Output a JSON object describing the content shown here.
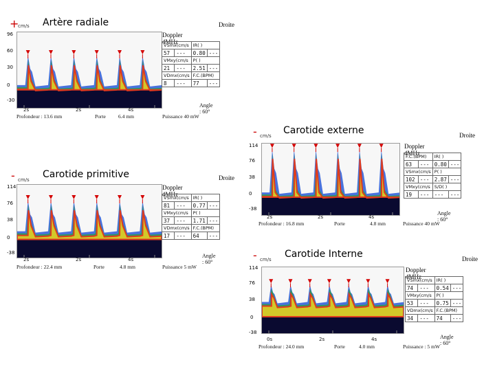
{
  "panels": [
    {
      "id": "radiale",
      "sign": "+",
      "unit": "cm/s",
      "caption": "Artère radiale",
      "side": "Droite",
      "doppler": "Doppler 4MHz",
      "y_ticks": [
        "96",
        "60",
        "30",
        "0",
        "-30"
      ],
      "baseline_label": "",
      "time_ticks": [
        "2s",
        "2s",
        "4s"
      ],
      "footer": {
        "depth": "Profondeur : 13.6 mm",
        "gate": "Porte",
        "gate_val": "6.4 mm",
        "power": "Puissance 40 mW"
      },
      "angle": "Angle : 60°",
      "table": [
        [
          "VSmx(cm/s",
          "IR( )",
          ""
        ],
        [
          "57",
          "---",
          "0.80",
          "---"
        ],
        [
          "VMxy(cm/s",
          "P( )",
          ""
        ],
        [
          "21",
          "---",
          "2.51",
          "---"
        ],
        [
          "VDmx(cm/s",
          "F.C.(BPM)",
          ""
        ],
        [
          "8",
          "---",
          "77",
          "---"
        ]
      ],
      "chart_data": {
        "type": "line",
        "title": "",
        "ylim": [
          -30,
          96
        ],
        "peaks_count": 6,
        "peak_value": 57,
        "diastolic_value": 8,
        "mean_value": 21
      }
    },
    {
      "id": "externe",
      "sign": "-",
      "unit": "cm/s",
      "caption": "Carotide externe",
      "side": "Droite",
      "doppler": "Doppler 4MHz",
      "y_ticks": [
        "114",
        "76",
        "38",
        "0",
        "-38"
      ],
      "time_ticks": [
        "2s",
        "2s",
        "4s"
      ],
      "footer": {
        "depth": "Profondeur : 16.8 mm",
        "gate": "Porte",
        "gate_val": "4.8 mm",
        "power": "Puissance 40 mW"
      },
      "angle": "Angle : 60°",
      "table": [
        [
          "F.C.(BPM)",
          "IR( )",
          ""
        ],
        [
          "63",
          "---",
          "0.80",
          "---"
        ],
        [
          "VSmx(cm/s",
          "P( )",
          ""
        ],
        [
          "102",
          "---",
          "2.87",
          "---"
        ],
        [
          "VMxy(cm/s",
          "S/D( )",
          ""
        ],
        [
          "19",
          "---",
          "---",
          "---"
        ]
      ],
      "chart_data": {
        "type": "line",
        "title": "",
        "ylim": [
          -38,
          114
        ],
        "peaks_count": 6,
        "peak_value": 102,
        "diastolic_value": 10,
        "mean_value": 19
      }
    },
    {
      "id": "primitive",
      "sign": "-",
      "unit": "cm/s",
      "caption": "Carotide primitive",
      "side": "Droite",
      "doppler": "Doppler 4MHz",
      "y_ticks": [
        "114",
        "76",
        "38",
        "0",
        "-38"
      ],
      "time_ticks": [
        "2s",
        "2s",
        "4s"
      ],
      "footer": {
        "depth": "Profondeur : 22.4 mm",
        "gate": "Porte",
        "gate_val": "4.8 mm",
        "power": "Puissance 5 mW"
      },
      "angle": "Angle : 60°",
      "table": [
        [
          "VSmx(cm/s",
          "IR( )",
          ""
        ],
        [
          "81",
          "---",
          "0.77",
          "---"
        ],
        [
          "VMxy(cm/s",
          "P( )",
          ""
        ],
        [
          "37",
          "---",
          "1.71",
          "---"
        ],
        [
          "VDmx(cm/s",
          "F.C.(BPM)",
          ""
        ],
        [
          "17",
          "---",
          "64",
          "---"
        ]
      ],
      "chart_data": {
        "type": "line",
        "title": "",
        "ylim": [
          -38,
          114
        ],
        "peaks_count": 6,
        "peak_value": 81,
        "diastolic_value": 17,
        "mean_value": 37
      }
    },
    {
      "id": "interne",
      "sign": "-",
      "unit": "cm/s",
      "caption": "Carotide Interne",
      "side": "Droite",
      "doppler": "Doppler 4MHz",
      "y_ticks": [
        "114",
        "76",
        "38",
        "0",
        "-38"
      ],
      "time_ticks": [
        "0s",
        "2s",
        "4s"
      ],
      "footer": {
        "depth": "Profondeur : 24.0 mm",
        "gate": "Porte",
        "gate_val": "4.0 mm",
        "power": "Puissance : 5 mW"
      },
      "angle": "Angle : 60°",
      "table": [
        [
          "VSmx(cm/s",
          "IR( )",
          ""
        ],
        [
          "74",
          "---",
          "0.54",
          "---"
        ],
        [
          "VMxy(cm/s",
          "P( )",
          ""
        ],
        [
          "53",
          "---",
          "0.75",
          "---"
        ],
        [
          "VDmx(cm/s",
          "F.C.(BPM)",
          ""
        ],
        [
          "34",
          "---",
          "74",
          "---"
        ]
      ],
      "chart_data": {
        "type": "line",
        "title": "",
        "ylim": [
          -38,
          114
        ],
        "peaks_count": 7,
        "peak_value": 74,
        "diastolic_value": 34,
        "mean_value": 53
      }
    }
  ],
  "colors": {
    "sign": "#cc0000",
    "marker": "#d40000",
    "trace_red": "#e03a1e",
    "trace_yellow": "#f0d020",
    "trace_green": "#2aa040",
    "trace_blue": "#2a5ad8",
    "background": "#0a0a30"
  }
}
